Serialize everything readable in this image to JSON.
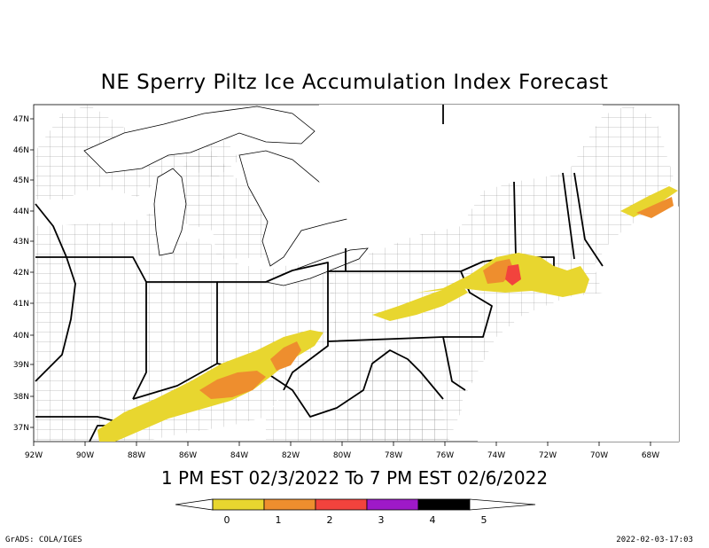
{
  "title": "NE Sperry Piltz Ice Accumulation Index Forecast",
  "subtitle": "1 PM EST 02/3/2022 To 7 PM EST 02/6/2022",
  "footer": {
    "left": "GrADS: COLA/IGES",
    "right": "2022-02-03-17:03"
  },
  "map": {
    "lat_labels": [
      "47N",
      "46N",
      "45N",
      "44N",
      "43N",
      "42N",
      "41N",
      "40N",
      "39N",
      "38N",
      "37N"
    ],
    "lon_labels": [
      "92W",
      "90W",
      "88W",
      "86W",
      "84W",
      "82W",
      "80W",
      "78W",
      "76W",
      "74W",
      "72W",
      "70W",
      "68W"
    ]
  },
  "legend": {
    "labels": [
      "0",
      "1",
      "2",
      "3",
      "4",
      "5"
    ],
    "colors": [
      "#e8d62f",
      "#ee8e2e",
      "#f2433d",
      "#9e19c8",
      "#000000"
    ],
    "end_color": "#ffffff"
  },
  "colors": {
    "ice_0_1": "#e8d62f",
    "ice_1_2": "#ee8e2e",
    "ice_2_3": "#f2433d",
    "county_lines": "#8a8a8a",
    "state_lines": "#000000"
  }
}
